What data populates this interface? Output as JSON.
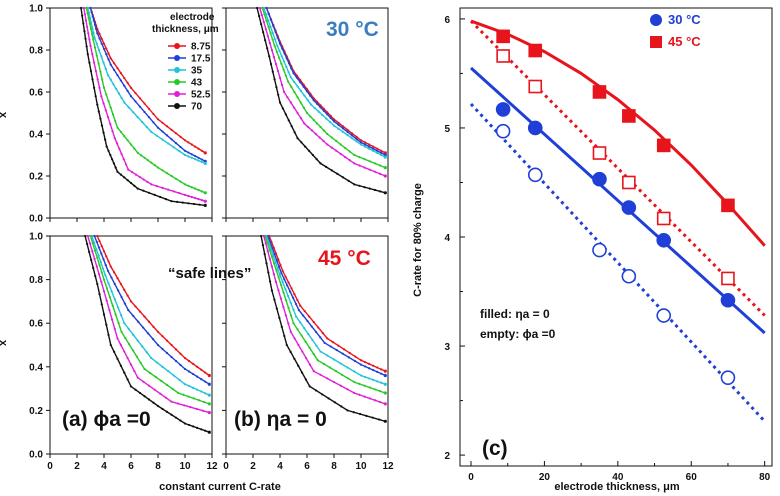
{
  "chart_data": [
    {
      "type": "line",
      "panel": "a-top",
      "title": "",
      "xlabel": "constant current C-rate",
      "ylabel": "x",
      "xlim": [
        0,
        12
      ],
      "ylim": [
        0,
        1.0
      ],
      "xticks": [
        "0",
        "2",
        "4",
        "6",
        "8",
        "10",
        "12"
      ],
      "yticks": [
        "0.0",
        "0.2",
        "0.4",
        "0.6",
        "0.8",
        "1.0"
      ],
      "temperature_label": "",
      "legend": {
        "title_line1": "electrode",
        "title_line2": "thickness, μm"
      },
      "series": [
        {
          "name": "8.75",
          "color": "#e8141c",
          "x": [
            3.0,
            3.5,
            4.5,
            6,
            8,
            10,
            11.5
          ],
          "y": [
            1.0,
            0.9,
            0.76,
            0.62,
            0.47,
            0.37,
            0.31
          ]
        },
        {
          "name": "17.5",
          "color": "#1f3fd6",
          "x": [
            3.0,
            3.5,
            4.5,
            6,
            8,
            10,
            11.5
          ],
          "y": [
            1.0,
            0.88,
            0.73,
            0.58,
            0.43,
            0.32,
            0.27
          ]
        },
        {
          "name": "35",
          "color": "#22c3d6",
          "x": [
            2.8,
            3.3,
            4.3,
            5.5,
            7.5,
            10,
            11.5
          ],
          "y": [
            1.0,
            0.86,
            0.68,
            0.55,
            0.41,
            0.3,
            0.26
          ]
        },
        {
          "name": "43",
          "color": "#28c828",
          "x": [
            2.7,
            3.2,
            4,
            5,
            6.5,
            8,
            10,
            11.5
          ],
          "y": [
            1.0,
            0.85,
            0.62,
            0.43,
            0.31,
            0.24,
            0.16,
            0.12
          ]
        },
        {
          "name": "52.5",
          "color": "#e020d8",
          "x": [
            2.5,
            3,
            3.8,
            4.8,
            5.8,
            7.5,
            10,
            11.5
          ],
          "y": [
            1.0,
            0.82,
            0.58,
            0.38,
            0.23,
            0.16,
            0.11,
            0.08
          ]
        },
        {
          "name": "70",
          "color": "#111111",
          "x": [
            2.3,
            2.8,
            3.5,
            4.2,
            5,
            6.5,
            9,
            11.5
          ],
          "y": [
            1.0,
            0.78,
            0.54,
            0.34,
            0.22,
            0.14,
            0.08,
            0.06
          ]
        }
      ]
    },
    {
      "type": "line",
      "panel": "b-top",
      "title": "",
      "xlim": [
        0,
        12
      ],
      "ylim": [
        0,
        1.0
      ],
      "xticks": [
        "0",
        "2",
        "4",
        "6",
        "8",
        "10",
        "12"
      ],
      "yticks": [],
      "temperature_label": "30 °C",
      "series": [
        {
          "name": "8.75",
          "color": "#e8141c",
          "x": [
            3.0,
            4,
            5,
            6.5,
            8,
            10,
            11.8
          ],
          "y": [
            1.0,
            0.84,
            0.7,
            0.57,
            0.47,
            0.37,
            0.31
          ]
        },
        {
          "name": "17.5",
          "color": "#1f3fd6",
          "x": [
            3.0,
            4,
            5,
            6.5,
            8,
            10,
            11.8
          ],
          "y": [
            1.0,
            0.83,
            0.69,
            0.56,
            0.46,
            0.36,
            0.3
          ]
        },
        {
          "name": "35",
          "color": "#22c3d6",
          "x": [
            2.8,
            3.8,
            4.8,
            6.3,
            8,
            10,
            11.8
          ],
          "y": [
            1.0,
            0.82,
            0.67,
            0.54,
            0.44,
            0.35,
            0.29
          ]
        },
        {
          "name": "43",
          "color": "#28c828",
          "x": [
            2.7,
            3.6,
            4.6,
            6,
            7.5,
            9.5,
            11.8
          ],
          "y": [
            1.0,
            0.82,
            0.65,
            0.5,
            0.4,
            0.3,
            0.24
          ]
        },
        {
          "name": "52.5",
          "color": "#e020d8",
          "x": [
            2.5,
            3.4,
            4.3,
            5.8,
            7.5,
            9.5,
            11.8
          ],
          "y": [
            1.0,
            0.8,
            0.6,
            0.45,
            0.35,
            0.26,
            0.2
          ]
        },
        {
          "name": "70",
          "color": "#111111",
          "x": [
            2.3,
            3.2,
            4,
            5.3,
            7,
            9.5,
            11.8
          ],
          "y": [
            1.0,
            0.77,
            0.55,
            0.38,
            0.26,
            0.16,
            0.12
          ]
        }
      ]
    },
    {
      "type": "line",
      "panel": "a-bottom",
      "title": "",
      "xlabel": "constant current C-rate",
      "ylabel": "x",
      "xlim": [
        0,
        12
      ],
      "ylim": [
        0,
        1.0
      ],
      "xticks": [
        "0",
        "2",
        "4",
        "6",
        "8",
        "10",
        "12"
      ],
      "yticks": [
        "0.0",
        "0.2",
        "0.4",
        "0.6",
        "0.8",
        "1.0"
      ],
      "annotation": "“safe lines”",
      "panel_label": "(a) ϕa =0",
      "series": [
        {
          "name": "8.75",
          "color": "#e8141c",
          "x": [
            3.5,
            4.5,
            6,
            8,
            10,
            11.8
          ],
          "y": [
            1.0,
            0.86,
            0.7,
            0.56,
            0.44,
            0.36
          ]
        },
        {
          "name": "17.5",
          "color": "#1f3fd6",
          "x": [
            3.3,
            4.3,
            5.8,
            8,
            10,
            11.8
          ],
          "y": [
            1.0,
            0.84,
            0.66,
            0.5,
            0.39,
            0.32
          ]
        },
        {
          "name": "35",
          "color": "#22c3d6",
          "x": [
            3.1,
            4.1,
            5.5,
            7.5,
            10,
            11.8
          ],
          "y": [
            1.0,
            0.82,
            0.6,
            0.44,
            0.32,
            0.27
          ]
        },
        {
          "name": "43",
          "color": "#28c828",
          "x": [
            3.0,
            4,
            5.3,
            7,
            9.5,
            11.8
          ],
          "y": [
            1.0,
            0.8,
            0.56,
            0.39,
            0.28,
            0.23
          ]
        },
        {
          "name": "52.5",
          "color": "#e020d8",
          "x": [
            2.8,
            3.8,
            5,
            6.5,
            9,
            11.8
          ],
          "y": [
            1.0,
            0.79,
            0.53,
            0.35,
            0.24,
            0.19
          ]
        },
        {
          "name": "70",
          "color": "#111111",
          "x": [
            2.6,
            3.5,
            4.5,
            6,
            8,
            10,
            11.8
          ],
          "y": [
            1.0,
            0.78,
            0.5,
            0.31,
            0.22,
            0.14,
            0.1
          ]
        }
      ]
    },
    {
      "type": "line",
      "panel": "b-bottom",
      "title": "",
      "xlim": [
        0,
        12
      ],
      "ylim": [
        0,
        1.0
      ],
      "xticks": [
        "0",
        "2",
        "4",
        "6",
        "8",
        "10",
        "12"
      ],
      "yticks": [],
      "temperature_label": "45 °C",
      "panel_label": "(b) ηa = 0",
      "series": [
        {
          "name": "8.75",
          "color": "#e8141c",
          "x": [
            3.2,
            4.2,
            5.5,
            7.5,
            10,
            11.8
          ],
          "y": [
            1.0,
            0.84,
            0.68,
            0.53,
            0.43,
            0.38
          ]
        },
        {
          "name": "17.5",
          "color": "#1f3fd6",
          "x": [
            3.1,
            4.1,
            5.4,
            7.3,
            10,
            11.8
          ],
          "y": [
            1.0,
            0.83,
            0.66,
            0.51,
            0.41,
            0.36
          ]
        },
        {
          "name": "35",
          "color": "#22c3d6",
          "x": [
            3.0,
            4,
            5.2,
            7,
            10,
            11.8
          ],
          "y": [
            1.0,
            0.82,
            0.63,
            0.47,
            0.36,
            0.32
          ]
        },
        {
          "name": "43",
          "color": "#28c828",
          "x": [
            2.9,
            3.9,
            5,
            6.8,
            9.5,
            11.8
          ],
          "y": [
            1.0,
            0.81,
            0.6,
            0.43,
            0.33,
            0.28
          ]
        },
        {
          "name": "52.5",
          "color": "#e020d8",
          "x": [
            2.8,
            3.7,
            4.8,
            6.5,
            9.5,
            11.8
          ],
          "y": [
            1.0,
            0.79,
            0.56,
            0.38,
            0.28,
            0.23
          ]
        },
        {
          "name": "70",
          "color": "#111111",
          "x": [
            2.6,
            3.4,
            4.5,
            6.2,
            9,
            11.8
          ],
          "y": [
            1.0,
            0.75,
            0.5,
            0.31,
            0.2,
            0.15
          ]
        }
      ]
    },
    {
      "type": "scatter",
      "panel": "c",
      "xlabel": "electrode thickness, μm",
      "ylabel": "C-rate for 80% charge",
      "xlim": [
        -3,
        82
      ],
      "ylim": [
        1.9,
        6.1
      ],
      "xticks": [
        "0",
        "20",
        "40",
        "60",
        "80"
      ],
      "yticks": [
        "2",
        "3",
        "4",
        "5",
        "6"
      ],
      "panel_label": "(c)",
      "legend": [
        {
          "name": "30 °C",
          "color": "#1f3fd6",
          "marker": "circle"
        },
        {
          "name": "45 °C",
          "color": "#e8141c",
          "marker": "square"
        }
      ],
      "note_filled": "filled:   ηa = 0",
      "note_empty": "empty:  ϕa =0",
      "series": [
        {
          "name": "45 °C filled",
          "color": "#e8141c",
          "marker": "square",
          "filled": true,
          "x": [
            8.75,
            17.5,
            35,
            43,
            52.5,
            70
          ],
          "y": [
            5.84,
            5.71,
            5.33,
            5.11,
            4.84,
            4.29
          ],
          "fit_x": [
            0,
            10,
            20,
            30,
            40,
            50,
            60,
            70,
            80
          ],
          "fit_y": [
            5.98,
            5.86,
            5.7,
            5.5,
            5.26,
            4.98,
            4.66,
            4.3,
            3.92
          ]
        },
        {
          "name": "45 °C empty",
          "color": "#e8141c",
          "marker": "square",
          "filled": false,
          "x": [
            8.75,
            17.5,
            35,
            43,
            52.5,
            70
          ],
          "y": [
            5.66,
            5.38,
            4.77,
            4.5,
            4.17,
            3.62
          ],
          "fit_x": [
            0,
            80
          ],
          "fit_y": [
            5.98,
            3.28
          ]
        },
        {
          "name": "30 °C filled",
          "color": "#1f3fd6",
          "marker": "circle",
          "filled": true,
          "x": [
            8.75,
            17.5,
            35,
            43,
            52.5,
            70
          ],
          "y": [
            5.17,
            5.0,
            4.53,
            4.27,
            3.97,
            3.42
          ],
          "fit_x": [
            0,
            80
          ],
          "fit_y": [
            5.55,
            3.12
          ]
        },
        {
          "name": "30 °C empty",
          "color": "#1f3fd6",
          "marker": "circle",
          "filled": false,
          "x": [
            8.75,
            17.5,
            35,
            43,
            52.5,
            70
          ],
          "y": [
            4.97,
            4.57,
            3.88,
            3.64,
            3.28,
            2.71
          ],
          "fit_x": [
            0,
            80
          ],
          "fit_y": [
            5.22,
            2.31
          ]
        }
      ]
    }
  ]
}
